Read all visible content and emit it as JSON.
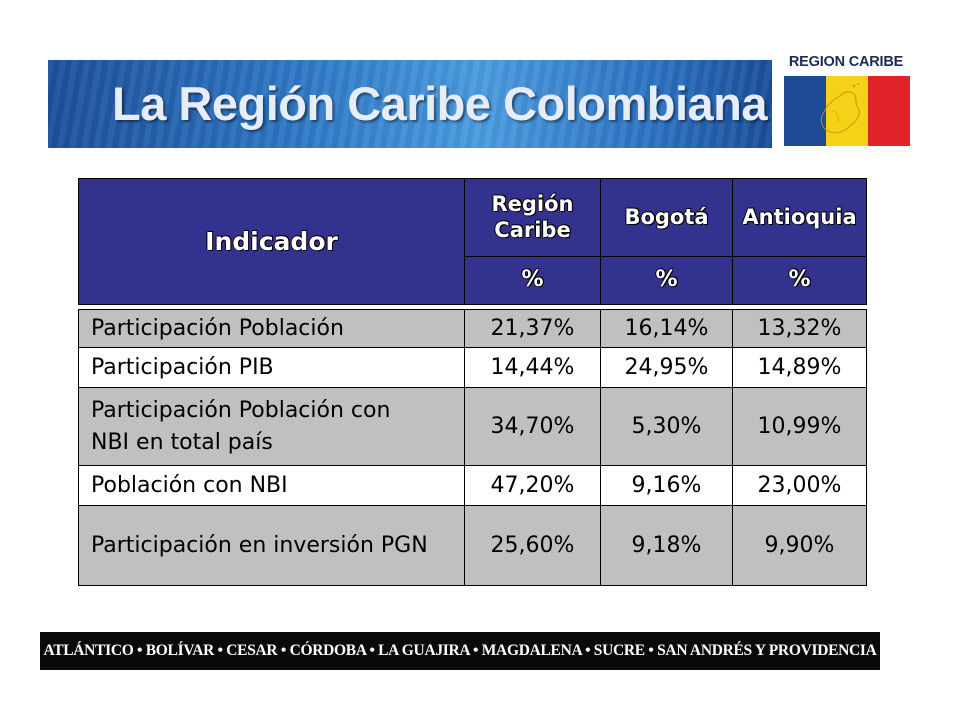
{
  "title": "La Región Caribe Colombiana",
  "logo": {
    "text": "REGION CARIBE",
    "colors": {
      "blue": "#1e4b94",
      "yellow": "#f5d117",
      "red": "#e0242a"
    }
  },
  "table": {
    "header": {
      "indicator": "Indicador",
      "columns": [
        {
          "line1": "Región",
          "line2": "Caribe",
          "unit": "%"
        },
        {
          "line1": "Bogotá",
          "line2": "",
          "unit": "%"
        },
        {
          "line1": "Antioquia",
          "line2": "",
          "unit": "%"
        }
      ]
    },
    "rows": [
      {
        "line1": "Participación Población",
        "line2": "",
        "values": [
          "21,37%",
          "16,14%",
          "13,32%"
        ]
      },
      {
        "line1": "Participación PIB",
        "line2": "",
        "values": [
          "14,44%",
          "24,95%",
          "14,89%"
        ]
      },
      {
        "line1": "Participación Población con",
        "line2": "NBI en total país",
        "values": [
          "34,70%",
          "5,30%",
          "10,99%"
        ]
      },
      {
        "line1": "Población con NBI",
        "line2": "",
        "values": [
          "47,20%",
          "9,16%",
          "23,00%"
        ]
      },
      {
        "line1": "Participación en inversión PGN",
        "line2": "",
        "values": [
          "25,60%",
          "9,18%",
          "9,90%"
        ]
      }
    ],
    "colors": {
      "header": "#33338f",
      "grey_row": "#c0c0c0",
      "white_row": "#ffffff"
    }
  },
  "footer": {
    "text": "ATLÁNTICO • BOLÍVAR • CESAR • CÓRDOBA • LA GUAJIRA • MAGDALENA • SUCRE • SAN ANDRÉS Y PROVIDENCIA"
  }
}
